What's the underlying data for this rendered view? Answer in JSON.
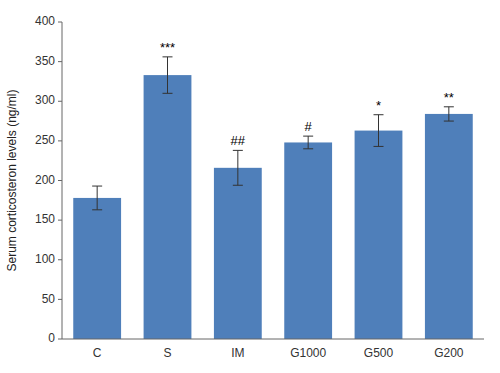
{
  "chart_data": {
    "type": "bar",
    "categories": [
      "C",
      "S",
      "IM",
      "G1000",
      "G500",
      "G200"
    ],
    "values": [
      178,
      333,
      216,
      248,
      263,
      284
    ],
    "errors": [
      15,
      23,
      22,
      8,
      20,
      9
    ],
    "annotations": [
      null,
      "***",
      "##",
      "#",
      "*",
      "**"
    ],
    "color": "#4f7fba",
    "ylabel": "Serum corticosteron levels (ng/ml)",
    "ylim": [
      0,
      400
    ],
    "yticks": [
      0,
      50,
      100,
      150,
      200,
      250,
      300,
      350,
      400
    ],
    "grid": false
  }
}
